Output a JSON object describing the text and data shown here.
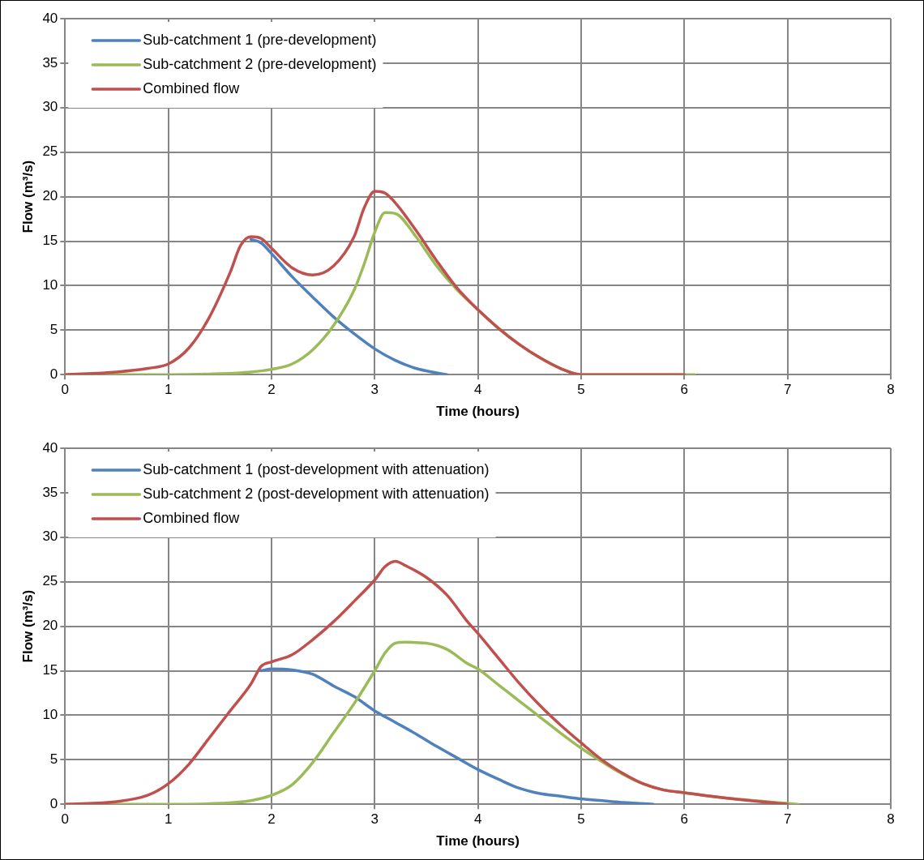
{
  "chart_data": [
    {
      "type": "line",
      "xlabel": "Time (hours)",
      "ylabel": "Flow (m³/s)",
      "xlim": [
        0,
        8
      ],
      "xticks": [
        0,
        1,
        2,
        3,
        4,
        5,
        6,
        7,
        8
      ],
      "ylim": [
        0,
        40
      ],
      "yticks": [
        0,
        5,
        10,
        15,
        20,
        25,
        30,
        35,
        40
      ],
      "grid": true,
      "legend": "top left",
      "marker": "none",
      "line_style": "solid",
      "series": [
        {
          "name": "Sub-catchment 1 (pre-development)",
          "color": "#4f81bd",
          "x": [
            1.8,
            1.9,
            2,
            2.2,
            2.4,
            2.6,
            2.8,
            3,
            3.2,
            3.4,
            3.6,
            3.7
          ],
          "values": [
            15.2,
            14.8,
            13.6,
            11,
            8.7,
            6.5,
            4.6,
            2.9,
            1.6,
            0.7,
            0.2,
            0
          ]
        },
        {
          "name": "Sub-catchment 2 (pre-development)",
          "color": "#9bbb59",
          "x": [
            0,
            1,
            1.5,
            1.8,
            2,
            2.2,
            2.4,
            2.6,
            2.8,
            2.9,
            3,
            3.1,
            3.2,
            3.4,
            3.6,
            3.8,
            4,
            4.2,
            4.4,
            4.6,
            4.8,
            5,
            6.1
          ],
          "values": [
            0,
            0,
            0.1,
            0.3,
            0.6,
            1.2,
            2.8,
            5.5,
            9.5,
            12.5,
            16,
            18.2,
            18.1,
            15.5,
            12.2,
            9.5,
            7.3,
            5.2,
            3.4,
            1.9,
            0.7,
            0,
            0
          ]
        },
        {
          "name": "Combined flow",
          "color": "#c0504d",
          "x": [
            0,
            0.5,
            0.8,
            1,
            1.2,
            1.4,
            1.6,
            1.7,
            1.8,
            1.9,
            2,
            2.2,
            2.4,
            2.6,
            2.8,
            2.9,
            3,
            3.1,
            3.2,
            3.4,
            3.6,
            3.8,
            4,
            4.2,
            4.4,
            4.6,
            4.8,
            5,
            6
          ],
          "values": [
            0,
            0.3,
            0.7,
            1.2,
            3,
            6.5,
            11.5,
            14.5,
            15.5,
            15.3,
            14.2,
            12,
            11.2,
            12.2,
            15.5,
            18.8,
            20.6,
            20.4,
            19.3,
            16.2,
            12.8,
            9.7,
            7.3,
            5.2,
            3.4,
            1.9,
            0.7,
            0,
            0
          ]
        }
      ]
    },
    {
      "type": "line",
      "xlabel": "Time (hours)",
      "ylabel": "Flow (m³/s)",
      "xlim": [
        0,
        8
      ],
      "xticks": [
        0,
        1,
        2,
        3,
        4,
        5,
        6,
        7,
        8
      ],
      "ylim": [
        0,
        40
      ],
      "yticks": [
        0,
        5,
        10,
        15,
        20,
        25,
        30,
        35,
        40
      ],
      "grid": true,
      "legend": "top left",
      "marker": "none",
      "line_style": "solid",
      "series": [
        {
          "name": "Sub-catchment 1 (post-development with attenuation)",
          "color": "#4f81bd",
          "x": [
            1.9,
            2,
            2.2,
            2.4,
            2.6,
            2.8,
            3,
            3.2,
            3.4,
            3.6,
            3.8,
            4,
            4.2,
            4.4,
            4.6,
            4.8,
            5,
            5.3,
            5.7
          ],
          "values": [
            15,
            15.2,
            15.1,
            14.6,
            13.3,
            12.1,
            10.5,
            9.2,
            7.9,
            6.5,
            5.2,
            3.9,
            2.8,
            1.8,
            1.2,
            0.9,
            0.6,
            0.3,
            0
          ]
        },
        {
          "name": "Sub-catchment 2 (post-development with attenuation)",
          "color": "#9bbb59",
          "x": [
            0,
            1,
            1.5,
            1.8,
            2,
            2.2,
            2.4,
            2.6,
            2.8,
            3,
            3.1,
            3.2,
            3.3,
            3.5,
            3.7,
            3.9,
            4,
            4.2,
            4.4,
            4.6,
            4.8,
            5,
            5.2,
            5.4,
            5.6,
            5.8,
            6,
            6.4,
            7,
            7.1
          ],
          "values": [
            0,
            0,
            0.1,
            0.4,
            1,
            2.2,
            4.7,
            8,
            11.3,
            15,
            17,
            18.1,
            18.2,
            18.1,
            17.4,
            15.8,
            15.2,
            13.4,
            11.6,
            9.8,
            8,
            6.3,
            4.8,
            3.4,
            2.3,
            1.6,
            1.3,
            0.7,
            0.1,
            0
          ]
        },
        {
          "name": "Combined flow",
          "color": "#c0504d",
          "x": [
            0,
            0.5,
            0.8,
            1,
            1.2,
            1.4,
            1.6,
            1.8,
            1.9,
            2,
            2.2,
            2.4,
            2.6,
            2.8,
            3,
            3.1,
            3.2,
            3.3,
            3.5,
            3.7,
            3.9,
            4,
            4.2,
            4.4,
            4.6,
            4.8,
            5,
            5.2,
            5.4,
            5.6,
            5.8,
            6,
            6.4,
            7
          ],
          "values": [
            0,
            0.3,
            1,
            2.3,
            4.5,
            7.5,
            10.5,
            13.5,
            15.5,
            16,
            16.8,
            18.5,
            20.5,
            22.8,
            25.2,
            26.7,
            27.3,
            26.8,
            25.5,
            23.5,
            20.5,
            19.2,
            16.4,
            13.6,
            11.1,
            8.9,
            6.9,
            5,
            3.5,
            2.3,
            1.6,
            1.3,
            0.7,
            0
          ]
        }
      ]
    }
  ]
}
